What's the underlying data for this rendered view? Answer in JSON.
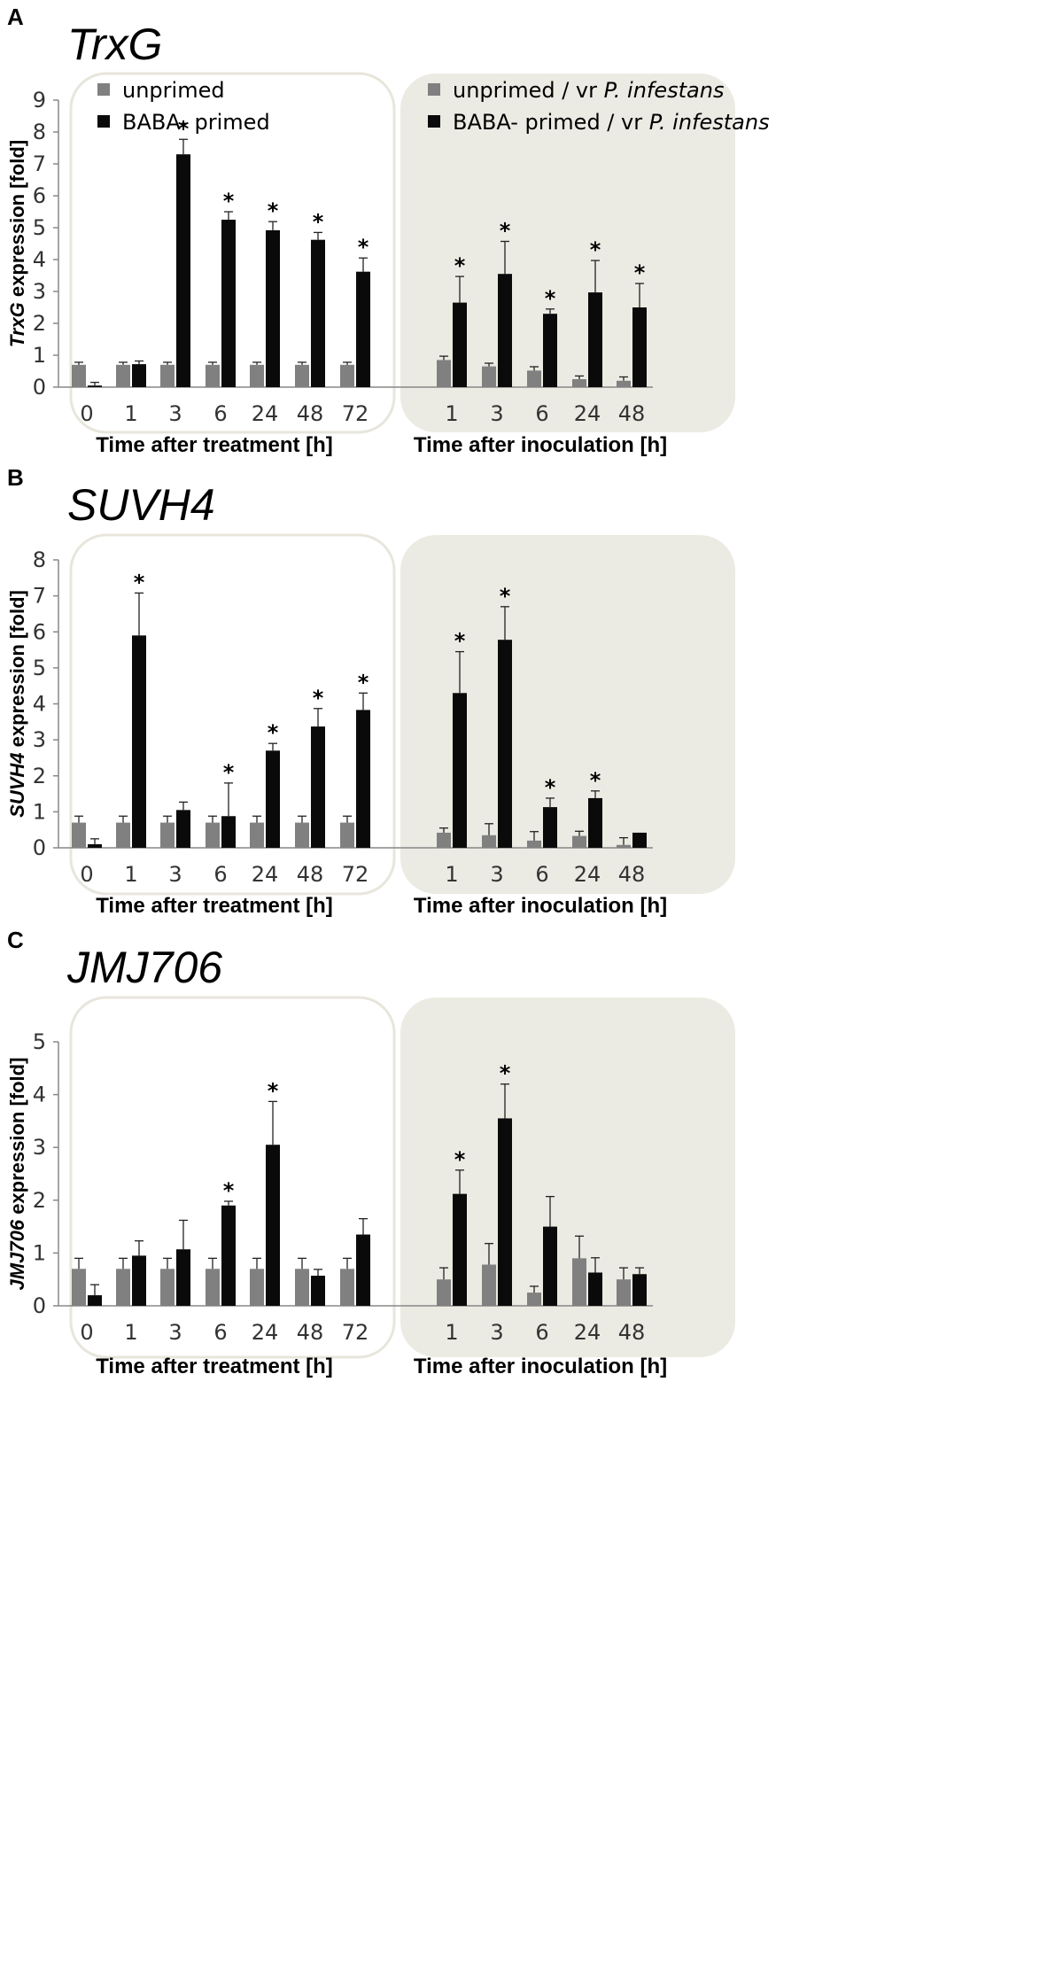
{
  "colors": {
    "unprimed": "#808080",
    "primed": "#0a0a0a",
    "inoculated_panel_fill": "#ebebe3",
    "panel_border": "#e8e6dc",
    "axis": "#888888"
  },
  "legend": {
    "treatment": [
      "unprimed",
      "BABA- primed"
    ],
    "inoculation": [
      {
        "pre": "unprimed / vr ",
        "italic": "P. infestans"
      },
      {
        "pre": "BABA- primed / vr ",
        "italic": "P. infestans"
      }
    ]
  },
  "chart_data": [
    {
      "type": "bar",
      "panel": "A",
      "title": "TrxG",
      "ylabel_italic": "TrxG",
      "ylabel_rest": " expression [fold]",
      "ylim": [
        0,
        9
      ],
      "yticks": [
        0,
        1,
        2,
        3,
        4,
        5,
        6,
        7,
        8,
        9
      ],
      "groups": [
        {
          "xlabel": "Time after treatment [h]",
          "categories": [
            "0",
            "1",
            "3",
            "6",
            "24",
            "48",
            "72"
          ]
        },
        {
          "xlabel": "Time after inoculation [h]",
          "categories": [
            "1",
            "3",
            "6",
            "24",
            "48"
          ]
        }
      ],
      "series": [
        {
          "name": "unprimed",
          "values": [
            0.7,
            0.7,
            0.7,
            0.7,
            0.7,
            0.7,
            0.7,
            0.85,
            0.65,
            0.52,
            0.25,
            0.2
          ],
          "errors": [
            0.08,
            0.08,
            0.08,
            0.08,
            0.08,
            0.08,
            0.08,
            0.12,
            0.1,
            0.12,
            0.1,
            0.12
          ]
        },
        {
          "name": "BABA- primed",
          "values": [
            0.05,
            0.72,
            7.3,
            5.25,
            4.92,
            4.62,
            3.62,
            2.65,
            3.55,
            2.3,
            2.97,
            2.5
          ],
          "errors": [
            0.1,
            0.1,
            0.47,
            0.25,
            0.27,
            0.23,
            0.43,
            0.82,
            1.02,
            0.15,
            1.0,
            0.75
          ]
        }
      ],
      "significant": [
        false,
        false,
        true,
        true,
        true,
        true,
        true,
        true,
        true,
        true,
        true,
        true
      ]
    },
    {
      "type": "bar",
      "panel": "B",
      "title": "SUVH4",
      "ylabel_italic": "SUVH4",
      "ylabel_rest": " expression [fold]",
      "ylim": [
        0,
        8
      ],
      "yticks": [
        0,
        1,
        2,
        3,
        4,
        5,
        6,
        7,
        8
      ],
      "groups": [
        {
          "xlabel": "Time after treatment  [h]",
          "categories": [
            "0",
            "1",
            "3",
            "6",
            "24",
            "48",
            "72"
          ]
        },
        {
          "xlabel": "Time after inoculation [h]",
          "categories": [
            "1",
            "3",
            "6",
            "24",
            "48"
          ]
        }
      ],
      "series": [
        {
          "name": "unprimed",
          "values": [
            0.7,
            0.7,
            0.7,
            0.7,
            0.7,
            0.7,
            0.7,
            0.42,
            0.35,
            0.2,
            0.33,
            0.08
          ],
          "errors": [
            0.18,
            0.18,
            0.18,
            0.18,
            0.18,
            0.18,
            0.18,
            0.13,
            0.32,
            0.25,
            0.13,
            0.2
          ]
        },
        {
          "name": "BABA- primed",
          "values": [
            0.1,
            5.9,
            1.05,
            0.88,
            2.7,
            3.37,
            3.83,
            4.3,
            5.78,
            1.13,
            1.38,
            0.42
          ],
          "errors": [
            0.15,
            1.18,
            0.22,
            0.92,
            0.2,
            0.5,
            0.47,
            1.15,
            0.92,
            0.25,
            0.2,
            0.0
          ]
        }
      ],
      "significant": [
        false,
        true,
        false,
        true,
        true,
        true,
        true,
        true,
        true,
        true,
        true,
        false
      ]
    },
    {
      "type": "bar",
      "panel": "C",
      "title": "JMJ706",
      "ylabel_italic": "JMJ706",
      "ylabel_rest": " expression [fold]",
      "ylim": [
        0,
        5
      ],
      "yticks": [
        0,
        1,
        2,
        3,
        4,
        5
      ],
      "groups": [
        {
          "xlabel": "Time after treatment [h]",
          "categories": [
            "0",
            "1",
            "3",
            "6",
            "24",
            "48",
            "72"
          ]
        },
        {
          "xlabel": "Time after inoculation [h]",
          "categories": [
            "1",
            "3",
            "6",
            "24",
            "48"
          ]
        }
      ],
      "series": [
        {
          "name": "unprimed",
          "values": [
            0.7,
            0.7,
            0.7,
            0.7,
            0.7,
            0.7,
            0.7,
            0.5,
            0.78,
            0.25,
            0.9,
            0.5
          ],
          "errors": [
            0.2,
            0.2,
            0.2,
            0.2,
            0.2,
            0.2,
            0.2,
            0.22,
            0.4,
            0.12,
            0.42,
            0.22
          ]
        },
        {
          "name": "BABA- primed",
          "values": [
            0.2,
            0.95,
            1.07,
            1.9,
            3.05,
            0.57,
            1.35,
            2.12,
            3.55,
            1.5,
            0.63,
            0.6
          ],
          "errors": [
            0.2,
            0.28,
            0.55,
            0.08,
            0.82,
            0.12,
            0.3,
            0.45,
            0.65,
            0.57,
            0.28,
            0.12
          ]
        }
      ],
      "significant": [
        false,
        false,
        false,
        true,
        true,
        false,
        false,
        true,
        true,
        false,
        false,
        false
      ]
    }
  ]
}
